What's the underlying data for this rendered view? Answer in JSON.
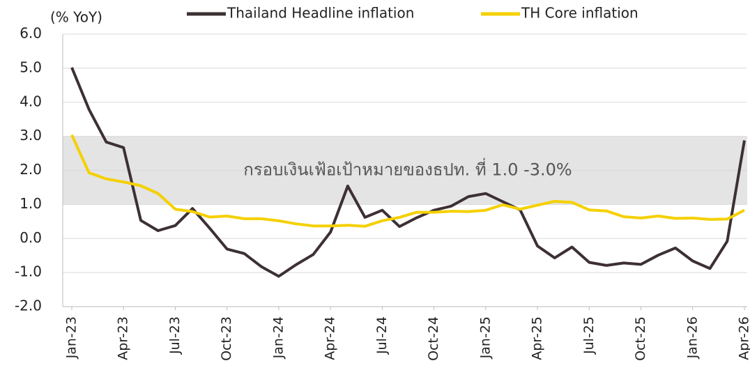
{
  "chart_data": {
    "type": "line",
    "y_label": "(% YoY)",
    "annotation": "กรอบเงินเฟ้อเป้าหมายของธปท. ที่ 1.0 -3.0%",
    "band": [
      1,
      3
    ],
    "categories": [
      "Jan-23",
      null,
      null,
      "Apr-23",
      null,
      null,
      "Jul-23",
      null,
      null,
      "Oct-23",
      null,
      null,
      "Jan-24",
      null,
      null,
      "Apr-24",
      null,
      null,
      "Jul-24",
      null,
      null,
      "Oct-24",
      null,
      null,
      "Jan-25",
      null,
      null,
      "Apr-25",
      null,
      null,
      "Jul-25",
      null,
      null,
      "Oct-25",
      null,
      null,
      "Jan-26",
      null,
      null,
      "Apr-26"
    ],
    "series": [
      {
        "name": "Thailand Headline inflation",
        "color": "#3d3033",
        "values": [
          5.02,
          3.79,
          2.83,
          2.67,
          0.53,
          0.23,
          0.38,
          0.88,
          0.3,
          -0.31,
          -0.44,
          -0.83,
          -1.11,
          -0.77,
          -0.47,
          0.19,
          1.54,
          0.62,
          0.83,
          0.35,
          0.61,
          0.83,
          0.95,
          1.23,
          1.32,
          1.08,
          0.84,
          -0.22,
          -0.57,
          -0.25,
          -0.7,
          -0.79,
          -0.72,
          -0.76,
          -0.49,
          -0.28,
          -0.66,
          -0.88,
          -0.08,
          2.88
        ]
      },
      {
        "name": "TH Core inflation",
        "color": "#f5d000",
        "values": [
          3.04,
          1.93,
          1.75,
          1.66,
          1.55,
          1.32,
          0.86,
          0.79,
          0.63,
          0.66,
          0.58,
          0.58,
          0.52,
          0.43,
          0.37,
          0.37,
          0.39,
          0.36,
          0.52,
          0.62,
          0.77,
          0.77,
          0.8,
          0.79,
          0.83,
          0.99,
          0.86,
          0.98,
          1.09,
          1.06,
          0.84,
          0.81,
          0.64,
          0.6,
          0.66,
          0.59,
          0.6,
          0.56,
          0.57,
          0.83
        ]
      }
    ],
    "ylim": [
      -2,
      6
    ],
    "yticks": [
      {
        "value": -2,
        "label": "-2.0"
      },
      {
        "value": -1,
        "label": "-1.0"
      },
      {
        "value": 0,
        "label": "0.0"
      },
      {
        "value": 1,
        "label": "1.0"
      },
      {
        "value": 2,
        "label": "2.0"
      },
      {
        "value": 3,
        "label": "3.0"
      },
      {
        "value": 4,
        "label": "4.0"
      },
      {
        "value": 5,
        "label": "5.0"
      },
      {
        "value": 6,
        "label": "6.0"
      }
    ],
    "grid": true
  }
}
